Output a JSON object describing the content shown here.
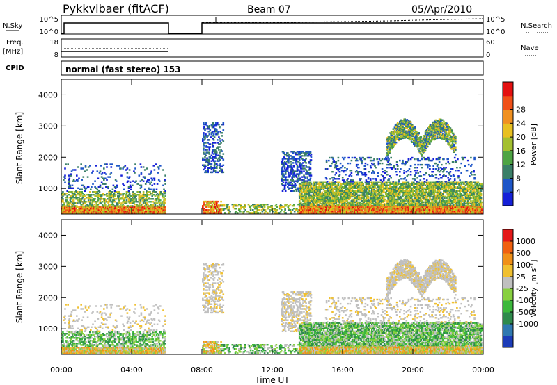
{
  "header": {
    "radar": "Pykkvibaer (fitACF)",
    "beam": "Beam 07",
    "date": "05/Apr/2010"
  },
  "nsky_panel": {
    "left_label": "N.Sky",
    "right_label": "N.Search",
    "left_ticks": [
      "10^5",
      "10^0"
    ],
    "right_ticks": [
      "10^5",
      "10^0"
    ]
  },
  "freq_panel": {
    "left_label_top": "Freq.",
    "left_label_bottom": "[MHz]",
    "right_label": "Nave",
    "left_ticks": [
      "18",
      "8"
    ],
    "right_ticks": [
      "60",
      "0"
    ]
  },
  "cpid": {
    "label": "CPID",
    "value": "normal (fast stereo) 153"
  },
  "chart_data": {
    "type": "heatmap",
    "x_ticks": [
      "00:00",
      "04:00",
      "08:00",
      "12:00",
      "16:00",
      "20:00",
      "00:00"
    ],
    "xlabel": "Time UT",
    "ylabel": "Slant Range [km]",
    "y_ticks": [
      "1000",
      "2000",
      "3000",
      "4000"
    ],
    "ylim": [
      180,
      4500
    ],
    "xlim": [
      0,
      24
    ],
    "data_gap_hours": [
      6.0,
      8.0
    ],
    "panels": [
      {
        "name": "power",
        "colorbar_label": "Power [dB]",
        "colorbar_ticks": [
          "4",
          "8",
          "12",
          "16",
          "20",
          "24",
          "28"
        ],
        "colors": [
          "#1520d8",
          "#1e56c8",
          "#3a7f68",
          "#4ea444",
          "#a4c030",
          "#e8c020",
          "#f09020",
          "#f05018",
          "#e41010"
        ]
      },
      {
        "name": "velocity",
        "colorbar_label": "Velocity [m s^-1]",
        "colorbar_ticks": [
          "1000",
          "500",
          "100",
          "25",
          "-25",
          "-100",
          "-500",
          "-1000"
        ],
        "colors": [
          "#1c3cb8",
          "#2f78b0",
          "#2e8a4c",
          "#3cb83c",
          "#88d040",
          "#c0c0c0",
          "#f0c030",
          "#f09018",
          "#f06010",
          "#e41818"
        ]
      }
    ]
  }
}
